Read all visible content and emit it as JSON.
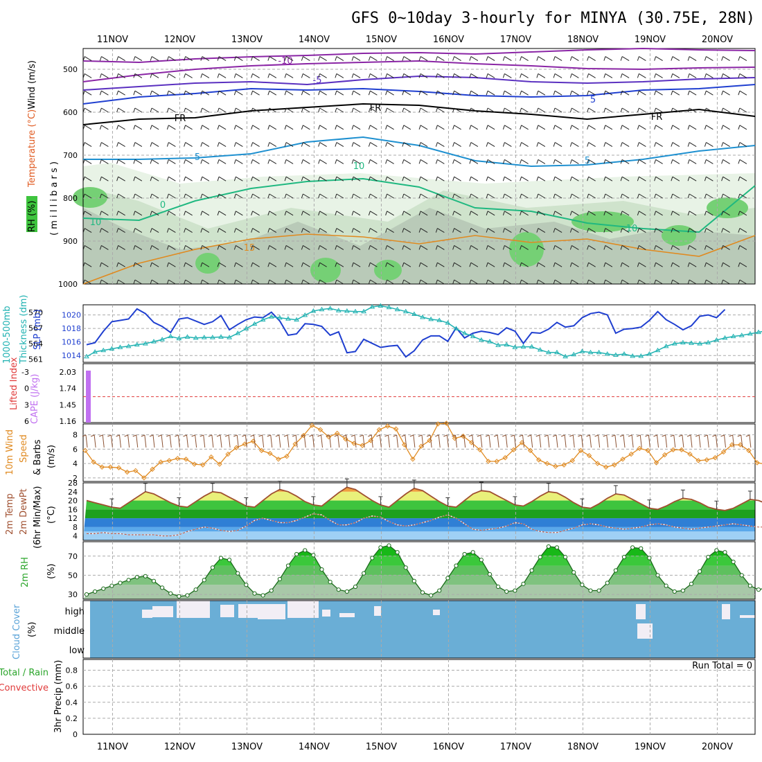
{
  "title": "GFS 0~10day 3-hourly for MINYA (30.75E, 28N)",
  "dates": [
    "11NOV",
    "12NOV",
    "13NOV",
    "14NOV",
    "15NOV",
    "16NOV",
    "17NOV",
    "18NOV",
    "19NOV",
    "20NOV"
  ],
  "panels": {
    "upper": {
      "labels": [
        {
          "text": "Wind (m/s)",
          "color": "#000000"
        },
        {
          "text": "Temperature (°C)",
          "color": "#e05a20"
        },
        {
          "text": "RH (%)",
          "color": "#000000"
        }
      ],
      "unit_label": "( m i l l i b a r s )",
      "ylabels": [
        "500",
        "600",
        "700",
        "800",
        "900",
        "1000"
      ],
      "contour_labels": [
        "-10",
        "-5",
        "5",
        "FR",
        "FR",
        "FR",
        "5",
        "5",
        "10",
        "10",
        "10",
        "0",
        "15"
      ]
    },
    "slp": {
      "left_label1": "1000-500mb",
      "left_label2": "Thickness (dm)",
      "right_label": "SLP (mb)",
      "thick_ticks": [
        "570",
        "567",
        "564",
        "561"
      ],
      "slp_ticks": [
        "1020",
        "1018",
        "1016",
        "1014"
      ]
    },
    "cape": {
      "label1": "Lifted Index",
      "label2": "CAPE (J/kg)",
      "li_ticks": [
        "-3",
        "0",
        "3",
        "6"
      ],
      "cape_ticks": [
        "2.03",
        "1.74",
        "1.45",
        "1.16"
      ]
    },
    "wind10": {
      "label1": "10m Wind",
      "label2": "Speed",
      "label3": "& Barbs",
      "unit": "(m/s)",
      "ticks": [
        "8",
        "6",
        "4",
        "2"
      ]
    },
    "temp": {
      "label1": "2m Temp",
      "label2": "2m DewPt",
      "label3": "(6hr Min/Max)",
      "unit": "(°C)",
      "ticks": [
        "28",
        "24",
        "20",
        "16",
        "12",
        "8",
        "4"
      ]
    },
    "rh": {
      "label": "2m RH",
      "unit": "(%)",
      "ticks": [
        "70",
        "50",
        "30"
      ]
    },
    "cloud": {
      "label": "Cloud Cover",
      "unit": "(%)",
      "levels": [
        "high",
        "middle",
        "low"
      ]
    },
    "precip": {
      "label1": "Total / Rain",
      "label2": "Convective",
      "label3": "3hr Precip (mm)",
      "run_total": "Run Total = 0",
      "ticks": [
        "0.8",
        "0.6",
        "0.4",
        "0.2",
        "0"
      ]
    }
  },
  "chart_data": [
    {
      "type": "line",
      "title": "SLP (mb)",
      "x_start": "10NOV 12Z",
      "x_step_hours": 3,
      "ylim": [
        1013,
        1021.5
      ],
      "series": [
        {
          "name": "SLP (mb)",
          "color": "#1f3fd0",
          "values": [
            1015.6,
            1015.9,
            1017.6,
            1019.0,
            1019.2,
            1019.4,
            1020.9,
            1020.2,
            1018.9,
            1018.3,
            1017.4,
            1019.4,
            1019.6,
            1019.1,
            1018.6,
            1019.0,
            1019.9,
            1017.8,
            1018.6,
            1019.3,
            1019.7,
            1019.6,
            1020.4,
            1019.1,
            1017.0,
            1017.2,
            1018.7,
            1018.6,
            1018.3,
            1017.0,
            1017.5,
            1014.4,
            1014.6,
            1016.4,
            1015.8,
            1015.2,
            1015.4,
            1015.5,
            1013.8,
            1014.7,
            1016.3,
            1016.9,
            1016.9,
            1016.1,
            1018.1,
            1016.6,
            1017.3,
            1017.6,
            1017.4,
            1017.1,
            1018.1,
            1017.6,
            1015.8,
            1017.4,
            1017.3,
            1017.9,
            1018.9,
            1018.2,
            1018.4,
            1019.6,
            1020.2,
            1020.4,
            1020.0,
            1017.3,
            1017.9,
            1018.0,
            1018.2,
            1019.2,
            1020.5,
            1019.3,
            1018.6,
            1017.8,
            1018.4,
            1019.8,
            1020.0,
            1019.6,
            1020.8
          ]
        }
      ]
    },
    {
      "type": "line",
      "title": "1000-500mb Thickness (dm)",
      "x_start": "10NOV 12Z",
      "x_step_hours": 3,
      "ylim": [
        560.4,
        571.5
      ],
      "series": [
        {
          "name": "1000-500mb Thickness (dm)",
          "color": "#20b2b2",
          "values": [
            561.5,
            562.4,
            562.7,
            563.0,
            563.3,
            563.5,
            563.8,
            564.0,
            564.4,
            564.8,
            565.4,
            565.0,
            565.3,
            565.1,
            565.2,
            565.2,
            565.3,
            565.2,
            566.0,
            566.9,
            567.8,
            568.6,
            569.2,
            569.0,
            568.8,
            568.6,
            569.5,
            570.3,
            570.6,
            570.8,
            570.4,
            570.3,
            570.2,
            570.2,
            571.1,
            571.3,
            571.0,
            570.6,
            570.2,
            569.7,
            569.1,
            568.7,
            568.5,
            568.0,
            566.9,
            566.0,
            565.4,
            564.7,
            564.4,
            563.7,
            563.8,
            563.3,
            563.4,
            563.4,
            562.8,
            562.3,
            562.3,
            561.5,
            561.9,
            562.5,
            562.3,
            562.3,
            562.0,
            561.8,
            562.0,
            561.6,
            561.6,
            562.0,
            562.7,
            563.5,
            564.0,
            564.2,
            564.1,
            564.0,
            564.2,
            564.7,
            565.1,
            565.4,
            565.6,
            565.9,
            566.2,
            566.5,
            566.9,
            567.3,
            567.7,
            568.0
          ]
        }
      ]
    },
    {
      "type": "line",
      "title": "10m Wind Speed (m/s)",
      "x_start": "10NOV 12Z",
      "x_step_hours": 3,
      "ylim": [
        1.5,
        9.5
      ],
      "series": [
        {
          "name": "Speed",
          "color": "#e08a20",
          "values": [
            5.8,
            4.2,
            3.5,
            3.5,
            3.4,
            2.8,
            3.0,
            2.0,
            3.2,
            4.2,
            4.4,
            4.7,
            4.6,
            3.9,
            3.8,
            4.9,
            3.9,
            5.3,
            6.2,
            6.7,
            7.1,
            5.8,
            5.4,
            4.6,
            5.0,
            6.7,
            7.9,
            9.3,
            8.7,
            7.7,
            8.2,
            7.4,
            6.8,
            6.5,
            7.2,
            8.7,
            9.2,
            8.8,
            6.6,
            4.6,
            6.4,
            7.2,
            9.5,
            9.6,
            7.5,
            7.8,
            6.9,
            5.9,
            4.3,
            4.3,
            4.8,
            5.9,
            6.9,
            5.8,
            4.5,
            4.0,
            3.6,
            3.8,
            4.4,
            5.8,
            5.1,
            4.0,
            3.5,
            3.8,
            4.6,
            5.3,
            6.1,
            5.8,
            4.1,
            5.2,
            5.9,
            5.9,
            5.3,
            4.4,
            4.5,
            4.8,
            5.6,
            6.6,
            6.6,
            5.8,
            4.1,
            3.9,
            4.1,
            4.0,
            4.5,
            5.6
          ]
        }
      ]
    },
    {
      "type": "area",
      "title": "2m Temp / 2m DewPt (°C)",
      "x_start": "10NOV 12Z",
      "x_step_hours": 3,
      "ylim": [
        2,
        28
      ],
      "series": [
        {
          "name": "2m Temp",
          "color": "#a05030",
          "values": [
            20,
            19,
            18,
            17,
            16.5,
            19,
            21.5,
            24,
            23,
            21,
            19,
            17.5,
            17,
            19.5,
            22,
            24,
            23.5,
            21.5,
            19.5,
            17.5,
            17,
            20,
            23,
            25,
            24,
            22,
            19.5,
            18,
            17.5,
            20.5,
            23.5,
            26,
            25,
            22.5,
            20,
            18,
            17,
            20,
            23,
            25.5,
            24.5,
            22,
            19.5,
            17.5,
            17,
            20,
            23,
            24.5,
            24,
            22,
            20,
            18,
            17.5,
            19.5,
            22,
            24,
            23.5,
            21.5,
            19,
            17,
            16.5,
            18.5,
            21,
            23,
            22.5,
            20.5,
            18.5,
            16.5,
            16,
            17.5,
            19.5,
            21,
            20.5,
            19,
            17,
            16,
            15.5,
            16.5,
            18.5,
            20.5,
            20,
            18.5,
            17,
            16,
            15.5,
            16
          ]
        },
        {
          "name": "2m DewPt",
          "color": "#c06050",
          "values": [
            5,
            5,
            5.5,
            5,
            5,
            4.5,
            4.5,
            4.5,
            4.5,
            4,
            4,
            4.5,
            6,
            7,
            8,
            7.5,
            6.5,
            6,
            6.5,
            8.5,
            11,
            12,
            11,
            10,
            10,
            11,
            12.5,
            14,
            13.5,
            11,
            9,
            9,
            10,
            12,
            13,
            12.5,
            10.5,
            9,
            8.5,
            9,
            10,
            11,
            12.5,
            13.5,
            12,
            9.5,
            7,
            6.5,
            7,
            7.5,
            8.5,
            10,
            9.5,
            7,
            6,
            5.5,
            5.5,
            6.5,
            7.5,
            9,
            9.5,
            9,
            8,
            7.5,
            7,
            7.5,
            8,
            9,
            9.5,
            9,
            8,
            7.5,
            7,
            7.5,
            8,
            8.5,
            9,
            9.5,
            9,
            8.5,
            8,
            8,
            8.5,
            8.5,
            9,
            9.5
          ]
        }
      ]
    },
    {
      "type": "area",
      "title": "2m RH (%)",
      "x_start": "10NOV 12Z",
      "x_step_hours": 3,
      "ylim": [
        25,
        85
      ],
      "series": [
        {
          "name": "2m RH",
          "color": "#1a8a1a",
          "values": [
            30,
            33,
            36,
            39,
            42,
            45,
            48,
            49,
            44,
            37,
            31,
            28,
            29,
            35,
            45,
            58,
            68,
            66,
            52,
            40,
            31,
            29,
            34,
            46,
            60,
            72,
            76,
            71,
            56,
            43,
            35,
            33,
            38,
            52,
            68,
            79,
            81,
            74,
            58,
            44,
            32,
            29,
            34,
            47,
            60,
            72,
            74,
            66,
            51,
            38,
            33,
            34,
            41,
            55,
            69,
            80,
            79,
            69,
            53,
            40,
            34,
            34,
            42,
            55,
            69,
            79,
            78,
            68,
            50,
            39,
            33,
            34,
            41,
            54,
            69,
            76,
            74,
            64,
            50,
            39,
            35,
            37,
            41,
            47,
            52,
            57,
            62
          ]
        }
      ]
    }
  ]
}
